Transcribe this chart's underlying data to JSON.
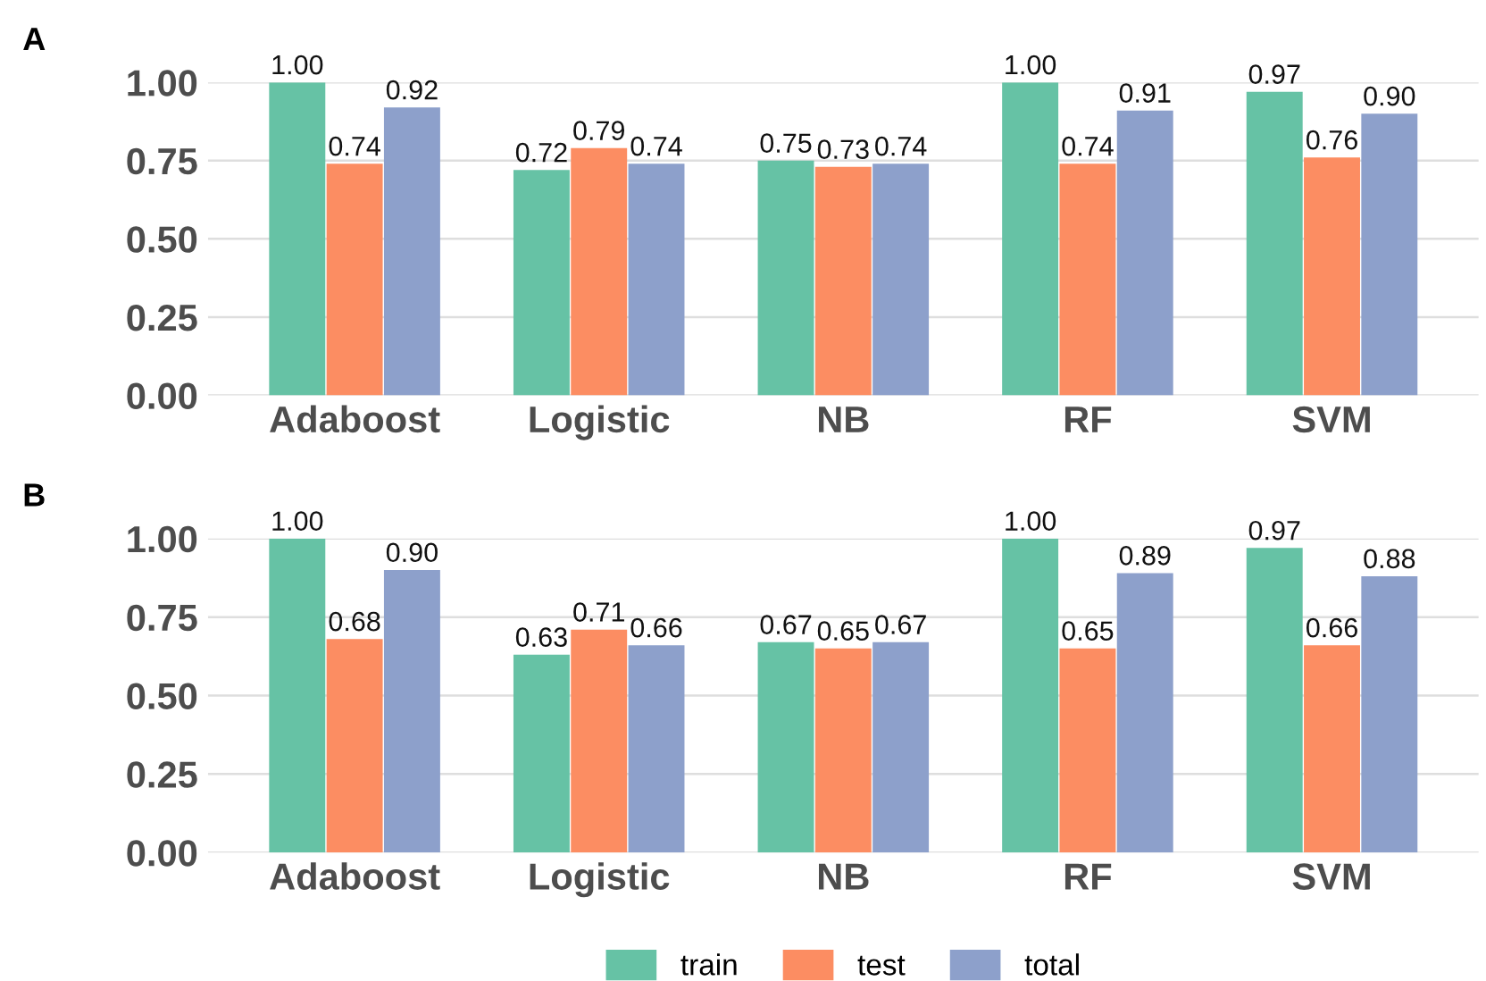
{
  "chart_data": [
    {
      "type": "bar",
      "title": "A",
      "categories": [
        "Adaboost",
        "Logistic",
        "NB",
        "RF",
        "SVM"
      ],
      "ylim": [
        0,
        1
      ],
      "yticks": [
        {
          "value": 0,
          "label": "0.00"
        },
        {
          "value": 0.25,
          "label": "0.25"
        },
        {
          "value": 0.5,
          "label": "0.50"
        },
        {
          "value": 0.75,
          "label": "0.75"
        },
        {
          "value": 1,
          "label": "1.00"
        }
      ],
      "grid": "y",
      "series": [
        {
          "color": "#66c2a5",
          "values": [
            1.0,
            0.72,
            0.75,
            1.0,
            0.97
          ],
          "value_labels": [
            "1.00",
            "0.72",
            "0.75",
            "1.00",
            "0.97"
          ]
        },
        {
          "color": "#fc8d62",
          "values": [
            0.74,
            0.79,
            0.73,
            0.74,
            0.76
          ],
          "value_labels": [
            "0.74",
            "0.79",
            "0.73",
            "0.74",
            "0.76"
          ]
        },
        {
          "color": "#8da0cb",
          "values": [
            0.92,
            0.74,
            0.74,
            0.91,
            0.9
          ],
          "value_labels": [
            "0.92",
            "0.74",
            "0.74",
            "0.91",
            "0.90"
          ]
        }
      ]
    },
    {
      "type": "bar",
      "title": "B",
      "categories": [
        "Adaboost",
        "Logistic",
        "NB",
        "RF",
        "SVM"
      ],
      "ylim": [
        0,
        1
      ],
      "yticks": [
        {
          "value": 0,
          "label": "0.00"
        },
        {
          "value": 0.25,
          "label": "0.25"
        },
        {
          "value": 0.5,
          "label": "0.50"
        },
        {
          "value": 0.75,
          "label": "0.75"
        },
        {
          "value": 1,
          "label": "1.00"
        }
      ],
      "grid": "y",
      "legend": "bottom",
      "series": [
        {
          "name": "train",
          "color": "#66c2a5",
          "values": [
            1.0,
            0.63,
            0.67,
            1.0,
            0.97
          ],
          "value_labels": [
            "1.00",
            "0.63",
            "0.67",
            "1.00",
            "0.97"
          ]
        },
        {
          "name": "test",
          "color": "#fc8d62",
          "values": [
            0.68,
            0.71,
            0.65,
            0.65,
            0.66
          ],
          "value_labels": [
            "0.68",
            "0.71",
            "0.65",
            "0.65",
            "0.66"
          ]
        },
        {
          "name": "total",
          "color": "#8da0cb",
          "values": [
            0.9,
            0.66,
            0.67,
            0.89,
            0.88
          ],
          "value_labels": [
            "0.90",
            "0.66",
            "0.67",
            "0.89",
            "0.88"
          ]
        }
      ]
    }
  ]
}
